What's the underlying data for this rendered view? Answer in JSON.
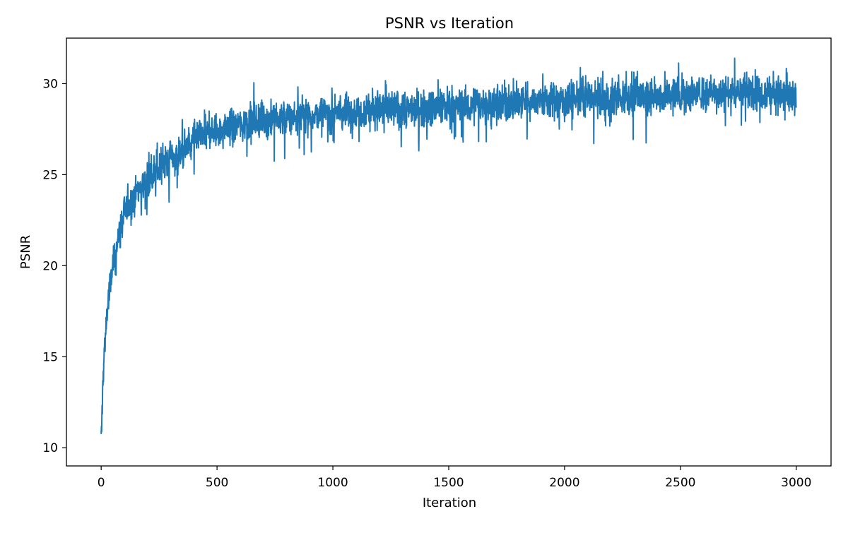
{
  "chart_data": {
    "type": "line",
    "title": "PSNR vs Iteration",
    "xlabel": "Iteration",
    "ylabel": "PSNR",
    "xlim": [
      -150,
      3150
    ],
    "ylim": [
      9.0,
      32.5
    ],
    "xticks": [
      0,
      500,
      1000,
      1500,
      2000,
      2500,
      3000
    ],
    "yticks": [
      10,
      15,
      20,
      25,
      30
    ],
    "grid": false,
    "legend": "none",
    "series": [
      {
        "color": "#1f77b4",
        "x": [
          0,
          10,
          25,
          50,
          75,
          100,
          150,
          200,
          250,
          300,
          350,
          400,
          450,
          500,
          600,
          700,
          800,
          900,
          1000,
          1100,
          1200,
          1300,
          1400,
          1500,
          1600,
          1700,
          1800,
          1900,
          2000,
          2100,
          2200,
          2300,
          2400,
          2500,
          2600,
          2700,
          2800,
          2900,
          2950,
          3000
        ],
        "y": [
          10.2,
          14.5,
          17.5,
          19.9,
          21.6,
          22.9,
          24.1,
          24.7,
          25.3,
          25.8,
          26.3,
          26.8,
          27.2,
          27.4,
          27.8,
          28.0,
          28.1,
          28.3,
          28.4,
          28.5,
          28.6,
          28.6,
          28.7,
          28.8,
          28.8,
          28.9,
          29.0,
          29.1,
          29.1,
          29.2,
          29.2,
          29.3,
          29.3,
          29.4,
          29.5,
          29.5,
          29.6,
          29.5,
          29.3,
          29.1
        ]
      }
    ]
  }
}
